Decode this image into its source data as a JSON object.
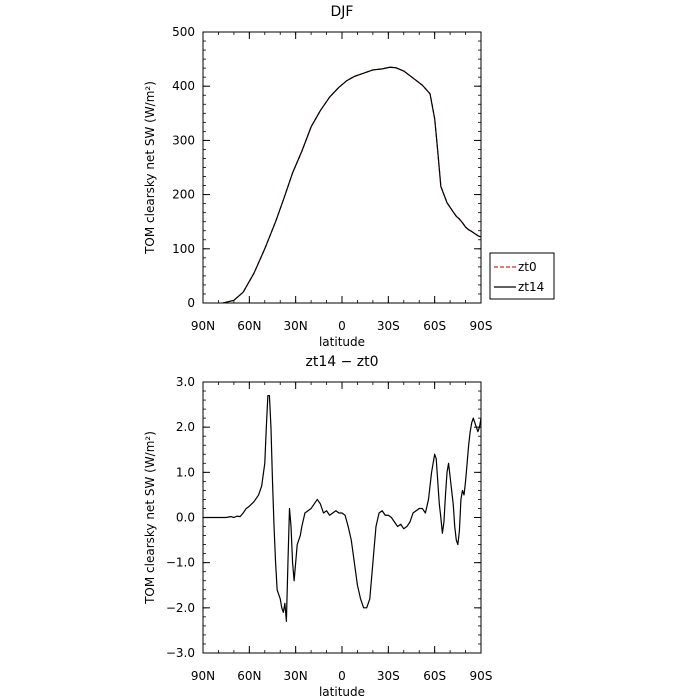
{
  "chart_data": [
    {
      "type": "line",
      "title": "DJF",
      "xlabel": "latitude",
      "ylabel": "TOM clearsky net SW (W/m²)",
      "xlim": [
        -90,
        90
      ],
      "ylim": [
        0,
        500
      ],
      "x_ticks": [
        -90,
        -60,
        -30,
        0,
        30,
        60,
        90
      ],
      "x_tick_labels": [
        "90N",
        "60N",
        "30N",
        "0",
        "30S",
        "60S",
        "90S"
      ],
      "y_ticks": [
        0,
        100,
        200,
        300,
        400,
        500
      ],
      "y_tick_labels": [
        "0",
        "100",
        "200",
        "300",
        "400",
        "500"
      ],
      "grid": false,
      "legend": "right-outside",
      "legend_entries": [
        {
          "label": "zt0",
          "color": "#d62728",
          "dash": "dashed"
        },
        {
          "label": "zt14",
          "color": "#000000",
          "dash": "solid"
        }
      ],
      "series": [
        {
          "name": "zt0",
          "color": "#d62728",
          "dash": "dashed",
          "x": [
            -77,
            -70,
            -64,
            -61,
            -57,
            -50,
            -43,
            -38,
            -32,
            -26,
            -20,
            -14,
            -8,
            -2,
            3,
            8,
            14,
            20,
            26,
            31,
            35,
            40,
            46,
            52,
            57,
            60,
            62,
            64,
            68,
            72,
            74,
            76,
            78,
            80,
            82,
            84,
            86,
            88,
            90
          ],
          "y": [
            0,
            5,
            20,
            35,
            55,
            100,
            150,
            190,
            240,
            280,
            325,
            355,
            380,
            398,
            410,
            418,
            424,
            430,
            432,
            435,
            434,
            428,
            415,
            402,
            386,
            340,
            280,
            215,
            185,
            168,
            160,
            155,
            148,
            140,
            135,
            132,
            128,
            124,
            122
          ]
        },
        {
          "name": "zt14",
          "color": "#000000",
          "dash": "solid",
          "x": [
            -77,
            -70,
            -64,
            -61,
            -57,
            -50,
            -43,
            -38,
            -32,
            -26,
            -20,
            -14,
            -8,
            -2,
            3,
            8,
            14,
            20,
            26,
            31,
            35,
            40,
            46,
            52,
            57,
            60,
            62,
            64,
            68,
            72,
            74,
            76,
            78,
            80,
            82,
            84,
            86,
            88,
            90
          ],
          "y": [
            0,
            5,
            20,
            35,
            55,
            100,
            150,
            190,
            240,
            280,
            325,
            355,
            380,
            398,
            410,
            418,
            424,
            430,
            432,
            435,
            434,
            428,
            415,
            402,
            386,
            340,
            280,
            215,
            185,
            168,
            160,
            155,
            148,
            140,
            135,
            132,
            128,
            124,
            122
          ]
        }
      ]
    },
    {
      "type": "line",
      "title": "zt14 − zt0",
      "xlabel": "latitude",
      "ylabel": "TOM clearsky net SW (W/m²)",
      "xlim": [
        -90,
        90
      ],
      "ylim": [
        -3,
        3
      ],
      "x_ticks": [
        -90,
        -60,
        -30,
        0,
        30,
        60,
        90
      ],
      "x_tick_labels": [
        "90N",
        "60N",
        "30N",
        "0",
        "30S",
        "60S",
        "90S"
      ],
      "y_ticks": [
        -3,
        -2,
        -1,
        0,
        1,
        2,
        3
      ],
      "y_tick_labels": [
        "−3.0",
        "−2.0",
        "−1.0",
        "0.0",
        "1.0",
        "2.0",
        "3.0"
      ],
      "grid": false,
      "series": [
        {
          "color": "#000000",
          "dash": "solid",
          "x": [
            -90,
            -78,
            -75,
            -72,
            -70,
            -68,
            -66,
            -64,
            -62,
            -60,
            -57,
            -54,
            -52,
            -50,
            -49,
            -48,
            -47,
            -46,
            -45,
            -44,
            -43,
            -42,
            -40,
            -39,
            -38,
            -37,
            -36,
            -35,
            -34,
            -33,
            -32,
            -31,
            -30,
            -29,
            -28,
            -27,
            -26,
            -24,
            -22,
            -20,
            -18,
            -16,
            -14,
            -12,
            -10,
            -8,
            -6,
            -4,
            -2,
            0,
            2,
            4,
            6,
            8,
            10,
            12,
            14,
            16,
            18,
            20,
            22,
            24,
            26,
            28,
            30,
            32,
            34,
            36,
            38,
            40,
            42,
            44,
            46,
            48,
            50,
            52,
            54,
            56,
            58,
            60,
            61,
            62,
            63,
            64,
            65,
            66,
            67,
            68,
            69,
            70,
            71,
            72,
            73,
            74,
            75,
            76,
            77,
            78,
            79,
            80,
            81,
            82,
            83,
            84,
            85,
            86,
            87,
            88,
            89,
            90
          ],
          "y": [
            0,
            0,
            0,
            0.02,
            0,
            0.03,
            0.02,
            0.1,
            0.2,
            0.25,
            0.35,
            0.5,
            0.7,
            1.2,
            2.0,
            2.7,
            2.7,
            2.0,
            0.8,
            -0.2,
            -1.0,
            -1.6,
            -1.8,
            -2.0,
            -2.1,
            -1.9,
            -2.3,
            -1.0,
            0.2,
            -0.2,
            -1.0,
            -1.4,
            -1.0,
            -0.6,
            -0.5,
            -0.4,
            -0.2,
            0.1,
            0.15,
            0.2,
            0.3,
            0.4,
            0.3,
            0.1,
            0.15,
            0.05,
            0.1,
            0.15,
            0.1,
            0.1,
            0.05,
            -0.2,
            -0.5,
            -1.0,
            -1.5,
            -1.8,
            -2.0,
            -2.0,
            -1.8,
            -1.0,
            -0.2,
            0.1,
            0.15,
            0.05,
            0.05,
            0.0,
            -0.1,
            -0.2,
            -0.15,
            -0.25,
            -0.2,
            -0.1,
            0.1,
            0.15,
            0.2,
            0.2,
            0.1,
            0.4,
            1.0,
            1.4,
            1.3,
            0.8,
            0.3,
            0.0,
            -0.35,
            -0.1,
            0.5,
            1.0,
            1.2,
            0.9,
            0.6,
            0.3,
            -0.2,
            -0.5,
            -0.6,
            -0.3,
            0.4,
            0.6,
            0.5,
            0.8,
            1.2,
            1.6,
            1.9,
            2.1,
            2.2,
            2.1,
            2.0,
            1.9,
            2.0,
            2.2
          ]
        }
      ]
    }
  ]
}
